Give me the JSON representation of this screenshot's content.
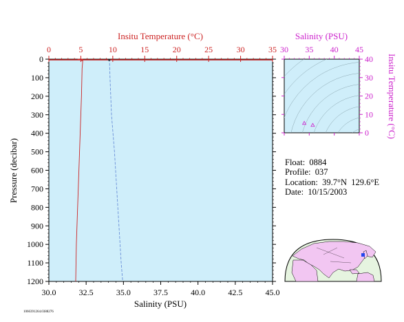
{
  "colors": {
    "plot_bg": "#cfeefa",
    "frame": "#000000",
    "temp_color": "#cc2222",
    "sal_color": "#6a8fd8",
    "ts_color": "#cc22cc",
    "map_land": "#f2c6f2",
    "map_ocean": "#e6f4e0"
  },
  "chart_data": [
    {
      "type": "line",
      "name": "profile",
      "title": "",
      "top_axis_label": "Insitu Temperature (°C)",
      "top_ticks": [
        "0",
        "5",
        "10",
        "15",
        "20",
        "25",
        "30",
        "35"
      ],
      "bottom_axis_label": "Salinity (PSU)",
      "bottom_ticks": [
        "30.0",
        "32.5",
        "35.0",
        "37.5",
        "40.0",
        "42.5",
        "45.0"
      ],
      "ylabel": "Pressure (decibar)",
      "y_ticks": [
        "0",
        "100",
        "200",
        "300",
        "400",
        "500",
        "600",
        "700",
        "800",
        "900",
        "1000",
        "1100",
        "1200"
      ],
      "temp_lim": [
        0,
        35
      ],
      "sal_lim": [
        30,
        45
      ],
      "ylim": [
        0,
        1200
      ],
      "y_inverted": true,
      "series": [
        {
          "kind": "temperature",
          "points": [
            [
              4.5,
              0
            ],
            [
              5.2,
              2
            ],
            [
              5.3,
              10
            ],
            [
              5.2,
              50
            ],
            [
              5.1,
              200
            ],
            [
              4.9,
              400
            ],
            [
              4.7,
              600
            ],
            [
              4.5,
              800
            ],
            [
              4.3,
              1000
            ],
            [
              4.2,
              1200
            ]
          ]
        },
        {
          "kind": "salinity",
          "points": [
            [
              34.0,
              0
            ],
            [
              34.05,
              5
            ],
            [
              34.07,
              20
            ],
            [
              34.1,
              100
            ],
            [
              34.2,
              300
            ],
            [
              34.4,
              500
            ],
            [
              34.55,
              700
            ],
            [
              34.7,
              900
            ],
            [
              34.85,
              1100
            ],
            [
              34.95,
              1200
            ]
          ]
        }
      ]
    },
    {
      "type": "scatter",
      "name": "ts_diagram",
      "title": "",
      "top_axis_label": "Salinity (PSU)",
      "x_ticks": [
        "30",
        "35",
        "40",
        "45"
      ],
      "xlim": [
        30,
        45
      ],
      "right_axis_label": "Insitu Temperature (°C)",
      "y_ticks": [
        "0",
        "10",
        "20",
        "30",
        "40"
      ],
      "ylim": [
        0,
        40
      ],
      "points": [
        [
          34.0,
          5.3
        ],
        [
          35.7,
          4.2
        ]
      ],
      "grid": "density contours"
    }
  ],
  "info": {
    "float_line": "Float:  0884",
    "profile_line": "Profile:  037",
    "location_line": "Location:  39.7°N  129.6°E",
    "date_line": "Date:  10/15/2003"
  },
  "footer_code": "1066391264.0388276",
  "map": {
    "marker_lat": 39.7,
    "marker_lon": 129.6
  }
}
